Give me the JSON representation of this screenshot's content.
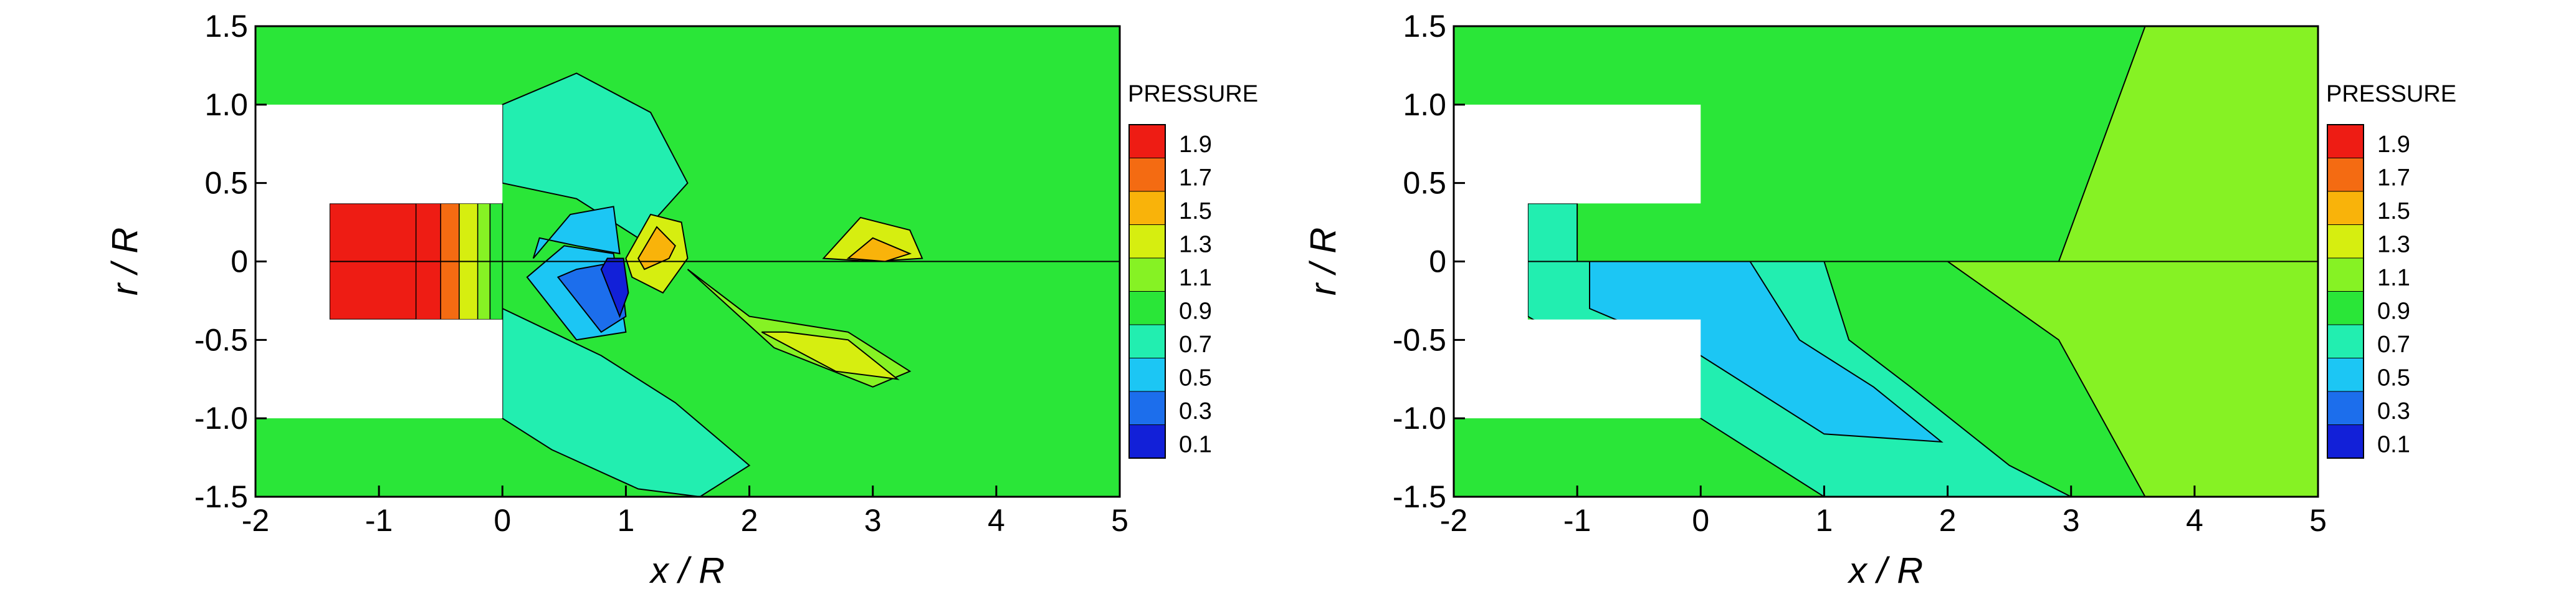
{
  "chart_data": [
    {
      "type": "heatmap",
      "title": "",
      "xlabel": "x / R",
      "ylabel": "r / R",
      "xlim": [
        -2,
        5
      ],
      "ylim": [
        -1.5,
        1.5
      ],
      "x_ticks": [
        -2,
        -1,
        0,
        1,
        2,
        3,
        4,
        5
      ],
      "y_ticks": [
        1.5,
        1.0,
        0.5,
        0,
        -0.5,
        -1.0,
        -1.5
      ],
      "x_tick_labels": [
        "-2",
        "-1",
        "0",
        "1",
        "2",
        "3",
        "4",
        "5"
      ],
      "y_tick_labels": [
        "1.5",
        "1.0",
        "0.5",
        "0",
        "-0.5",
        "-1.0",
        "-1.5"
      ],
      "legend": {
        "title": "PRESSURE",
        "levels": [
          "1.9",
          "1.7",
          "1.5",
          "1.3",
          "1.1",
          "0.9",
          "0.7",
          "0.5",
          "0.3",
          "0.1"
        ],
        "colors": [
          "#ee1c14",
          "#f46b12",
          "#f9b30a",
          "#d6ee10",
          "#86f224",
          "#2ae638",
          "#22eeb0",
          "#1cc6f4",
          "#1c6eec",
          "#1220d8"
        ]
      },
      "background_value": 1.0,
      "nozzle_exit_value": 2.0,
      "regions": [
        {
          "value": 0.65,
          "x": [
            0.0,
            0.4,
            1.1,
            1.6,
            2.0,
            1.4,
            0.8,
            0.0,
            0.0
          ],
          "y": [
            -1.0,
            -1.2,
            -1.45,
            -1.5,
            -1.3,
            -0.9,
            -0.6,
            -0.3,
            -1.0
          ]
        },
        {
          "value": 0.65,
          "x": [
            0.0,
            0.6,
            1.2,
            1.5,
            1.1,
            0.6,
            0.0,
            0.0
          ],
          "y": [
            1.0,
            1.2,
            0.95,
            0.5,
            0.15,
            0.4,
            0.5,
            1.0
          ]
        },
        {
          "value": 0.45,
          "x": [
            0.2,
            0.6,
            1.0,
            0.9,
            0.5,
            0.2
          ],
          "y": [
            -0.1,
            -0.5,
            -0.45,
            0.05,
            0.1,
            -0.1
          ]
        },
        {
          "value": 0.25,
          "x": [
            0.45,
            0.8,
            1.0,
            0.95,
            0.6,
            0.45
          ],
          "y": [
            -0.1,
            -0.45,
            -0.35,
            0.0,
            -0.05,
            -0.1
          ]
        },
        {
          "value": 0.1,
          "x": [
            0.8,
            0.95,
            1.02,
            0.98,
            0.85,
            0.8
          ],
          "y": [
            -0.05,
            -0.35,
            -0.2,
            0.02,
            0.02,
            -0.05
          ]
        },
        {
          "value": 0.45,
          "x": [
            0.25,
            0.55,
            0.9,
            0.95,
            0.6,
            0.3,
            0.25
          ],
          "y": [
            0.02,
            0.3,
            0.35,
            0.05,
            0.1,
            0.15,
            0.02
          ]
        },
        {
          "value": 1.25,
          "x": [
            1.0,
            1.2,
            1.45,
            1.5,
            1.3,
            1.05,
            1.0
          ],
          "y": [
            0.02,
            0.3,
            0.25,
            0.02,
            -0.2,
            -0.1,
            0.02
          ]
        },
        {
          "value": 1.55,
          "x": [
            1.1,
            1.25,
            1.4,
            1.35,
            1.15,
            1.1
          ],
          "y": [
            0.02,
            0.22,
            0.1,
            0.02,
            -0.05,
            0.02
          ]
        },
        {
          "value": 1.25,
          "x": [
            2.6,
            2.9,
            3.3,
            3.4,
            3.0,
            2.6
          ],
          "y": [
            0.02,
            0.28,
            0.2,
            0.02,
            0.0,
            0.02
          ]
        },
        {
          "value": 1.5,
          "x": [
            2.8,
            3.0,
            3.3,
            3.1,
            2.8
          ],
          "y": [
            0.02,
            0.15,
            0.05,
            0.0,
            0.02
          ]
        },
        {
          "value": 1.2,
          "x": [
            1.5,
            2.2,
            3.0,
            3.3,
            2.8,
            2.0,
            1.5
          ],
          "y": [
            -0.05,
            -0.55,
            -0.8,
            -0.7,
            -0.45,
            -0.35,
            -0.05
          ]
        },
        {
          "value": 1.3,
          "x": [
            2.1,
            2.7,
            3.2,
            2.8,
            2.3,
            2.1
          ],
          "y": [
            -0.45,
            -0.7,
            -0.75,
            -0.5,
            -0.45,
            -0.45
          ]
        }
      ],
      "nozzle_gradient_bands": [
        {
          "x0": -0.7,
          "x1": -0.5,
          "value": 1.8
        },
        {
          "x0": -0.5,
          "x1": -0.35,
          "value": 1.6
        },
        {
          "x0": -0.35,
          "x1": -0.2,
          "value": 1.4
        },
        {
          "x0": -0.2,
          "x1": -0.1,
          "value": 1.2
        },
        {
          "x0": -0.1,
          "x1": 0.0,
          "value": 1.0
        }
      ]
    },
    {
      "type": "heatmap",
      "title": "",
      "xlabel": "x / R",
      "ylabel": "r / R",
      "xlim": [
        -2,
        5
      ],
      "ylim": [
        -1.5,
        1.5
      ],
      "x_ticks": [
        -2,
        -1,
        0,
        1,
        2,
        3,
        4,
        5
      ],
      "y_ticks": [
        1.5,
        1.0,
        0.5,
        0,
        -0.5,
        -1.0,
        -1.5
      ],
      "x_tick_labels": [
        "-2",
        "-1",
        "0",
        "1",
        "2",
        "3",
        "4",
        "5"
      ],
      "y_tick_labels": [
        "1.5",
        "1.0",
        "0.5",
        "0",
        "-0.5",
        "-1.0",
        "-1.5"
      ],
      "legend": {
        "title": "PRESSURE",
        "levels": [
          "1.9",
          "1.7",
          "1.5",
          "1.3",
          "1.1",
          "0.9",
          "0.7",
          "0.5",
          "0.3",
          "0.1"
        ],
        "colors": [
          "#ee1c14",
          "#f46b12",
          "#f9b30a",
          "#d6ee10",
          "#86f224",
          "#2ae638",
          "#22eeb0",
          "#1cc6f4",
          "#1c6eec",
          "#1220d8"
        ]
      },
      "background_value": 1.0,
      "regions": [
        {
          "value": 1.15,
          "x": [
            2.9,
            5.0,
            5.0,
            3.6,
            2.9
          ],
          "y": [
            0.0,
            0.0,
            1.5,
            1.5,
            0.0
          ]
        },
        {
          "value": 1.15,
          "x": [
            2.0,
            5.0,
            5.0,
            3.6,
            2.9,
            2.0
          ],
          "y": [
            0.0,
            0.0,
            -1.5,
            -1.5,
            -0.5,
            0.0
          ]
        },
        {
          "value": 0.65,
          "x": [
            -1.4,
            1.0,
            1.2,
            1.7,
            2.5,
            3.0,
            1.0,
            0.0,
            -1.4
          ],
          "y": [
            0.0,
            0.0,
            -0.5,
            -0.8,
            -1.3,
            -1.5,
            -1.5,
            -1.0,
            -0.35
          ]
        },
        {
          "value": 0.55,
          "x": [
            -0.9,
            0.4,
            0.8,
            1.4,
            1.95,
            1.0,
            0.0,
            -0.9
          ],
          "y": [
            0.0,
            0.0,
            -0.5,
            -0.8,
            -1.15,
            -1.1,
            -0.6,
            -0.3
          ]
        },
        {
          "value": 0.65,
          "x": [
            -1.4,
            -1.0,
            -1.0,
            -1.4
          ],
          "y": [
            0.0,
            0.0,
            0.37,
            0.37
          ]
        }
      ]
    }
  ]
}
